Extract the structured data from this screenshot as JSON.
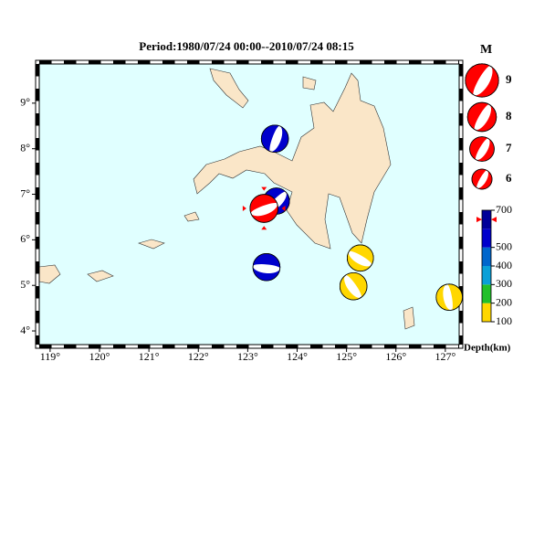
{
  "title": "Period:1980/07/24 00:00--2010/07/24 08:15",
  "map": {
    "lon_range": [
      118.78,
      127.28
    ],
    "lat_range": [
      3.7,
      9.86
    ],
    "lon_ticks": [
      {
        "value": 119,
        "label": "119°"
      },
      {
        "value": 120,
        "label": "120°"
      },
      {
        "value": 121,
        "label": "121°"
      },
      {
        "value": 122,
        "label": "122°"
      },
      {
        "value": 123,
        "label": "123°"
      },
      {
        "value": 124,
        "label": "124°"
      },
      {
        "value": 125,
        "label": "125°"
      },
      {
        "value": 126,
        "label": "126°"
      },
      {
        "value": 127,
        "label": "127°"
      }
    ],
    "lat_ticks": [
      {
        "value": 4,
        "label": "4°"
      },
      {
        "value": 5,
        "label": "5°"
      },
      {
        "value": 6,
        "label": "6°"
      },
      {
        "value": 7,
        "label": "7°"
      },
      {
        "value": 8,
        "label": "8°"
      },
      {
        "value": 9,
        "label": "9°"
      }
    ],
    "sea_color": "#e0ffff",
    "land_color": "#fae6c8"
  },
  "events": [
    {
      "lon": 123.55,
      "lat": 8.22,
      "depth": 600,
      "magnitude": 7.6
    },
    {
      "lon": 123.58,
      "lat": 6.85,
      "depth": 600,
      "magnitude": 7.4
    },
    {
      "lon": 123.33,
      "lat": 6.69,
      "depth": 650,
      "magnitude": 7.8,
      "highlight": true,
      "color": "#ff0000"
    },
    {
      "lon": 123.38,
      "lat": 5.4,
      "depth": 600,
      "magnitude": 7.6
    },
    {
      "lon": 125.28,
      "lat": 5.6,
      "depth": 150,
      "magnitude": 7.4
    },
    {
      "lon": 125.14,
      "lat": 4.98,
      "depth": 150,
      "magnitude": 7.6
    },
    {
      "lon": 127.08,
      "lat": 4.74,
      "depth": 150,
      "magnitude": 7.4
    }
  ],
  "magnitude_legend": {
    "title": "M",
    "values": [
      9,
      8,
      7,
      6
    ],
    "color": "#ff0000"
  },
  "depth_scale": {
    "label": "Depth(km)",
    "ticks": [
      100,
      200,
      300,
      400,
      500,
      700
    ],
    "bounds": [
      100,
      200,
      300,
      400,
      500,
      600,
      700
    ],
    "colors": [
      "#ffd700",
      "#22c02a",
      "#0aa0d8",
      "#0066cc",
      "#0000cc",
      "#000099"
    ]
  }
}
